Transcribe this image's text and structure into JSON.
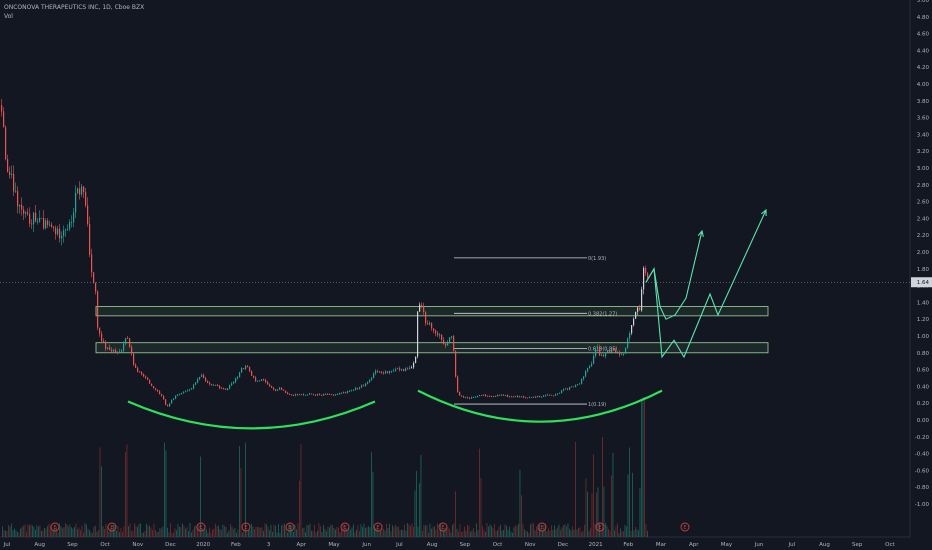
{
  "header": {
    "title": "ONCONOVA THERAPEUTICS INC, 1D, Cboe BZX",
    "volume_label": "Vol"
  },
  "chart_data": {
    "type": "candlestick",
    "price_axis_ticks": [
      "5.00",
      "4.80",
      "4.60",
      "4.40",
      "4.20",
      "4.00",
      "3.80",
      "3.60",
      "3.40",
      "3.20",
      "3.00",
      "2.80",
      "2.60",
      "2.40",
      "2.20",
      "2.00",
      "1.80",
      "1.60",
      "1.40",
      "1.20",
      "1.00",
      "0.80",
      "0.60",
      "0.40",
      "0.20",
      "0.00",
      "-0.20",
      "-0.40",
      "-0.60",
      "-0.80",
      "-1.00"
    ],
    "time_axis_ticks": [
      "Jul",
      "Aug",
      "Sep",
      "Oct",
      "Nov",
      "Dec",
      "2020",
      "Feb",
      "3",
      "Apr",
      "May",
      "Jun",
      "Jul",
      "Aug",
      "Sep",
      "Oct",
      "Nov",
      "Dec",
      "2021",
      "Feb",
      "Mar",
      "Apr",
      "May",
      "Jun",
      "Jul",
      "Aug",
      "Sep",
      "Oct"
    ],
    "current_price": "1.64",
    "price_path": [
      [
        0,
        3.75
      ],
      [
        3,
        3.4
      ],
      [
        6,
        3.0
      ],
      [
        10,
        2.9
      ],
      [
        16,
        2.6
      ],
      [
        22,
        2.45
      ],
      [
        28,
        2.38
      ],
      [
        34,
        2.42
      ],
      [
        40,
        2.35
      ],
      [
        46,
        2.3
      ],
      [
        52,
        2.28
      ],
      [
        58,
        2.2
      ],
      [
        64,
        2.3
      ],
      [
        70,
        2.3
      ],
      [
        76,
        2.7
      ],
      [
        82,
        2.75
      ],
      [
        86,
        2.5
      ],
      [
        89,
        2.0
      ],
      [
        92,
        1.7
      ],
      [
        95,
        1.5
      ],
      [
        97,
        1.1
      ],
      [
        100,
        0.95
      ],
      [
        106,
        0.85
      ],
      [
        112,
        0.82
      ],
      [
        118,
        0.78
      ],
      [
        122,
        0.85
      ],
      [
        126,
        1.05
      ],
      [
        129,
        0.88
      ],
      [
        134,
        0.62
      ],
      [
        140,
        0.55
      ],
      [
        146,
        0.48
      ],
      [
        152,
        0.4
      ],
      [
        158,
        0.33
      ],
      [
        162,
        0.28
      ],
      [
        166,
        0.15
      ],
      [
        170,
        0.22
      ],
      [
        176,
        0.3
      ],
      [
        182,
        0.32
      ],
      [
        188,
        0.35
      ],
      [
        194,
        0.42
      ],
      [
        200,
        0.55
      ],
      [
        206,
        0.45
      ],
      [
        212,
        0.42
      ],
      [
        218,
        0.4
      ],
      [
        224,
        0.35
      ],
      [
        230,
        0.42
      ],
      [
        236,
        0.5
      ],
      [
        240,
        0.6
      ],
      [
        246,
        0.65
      ],
      [
        250,
        0.55
      ],
      [
        256,
        0.45
      ],
      [
        262,
        0.5
      ],
      [
        268,
        0.4
      ],
      [
        274,
        0.35
      ],
      [
        280,
        0.38
      ],
      [
        286,
        0.32
      ],
      [
        292,
        0.3
      ],
      [
        300,
        0.3
      ],
      [
        308,
        0.31
      ],
      [
        316,
        0.3
      ],
      [
        324,
        0.3
      ],
      [
        332,
        0.3
      ],
      [
        340,
        0.32
      ],
      [
        348,
        0.34
      ],
      [
        356,
        0.38
      ],
      [
        364,
        0.42
      ],
      [
        370,
        0.48
      ],
      [
        376,
        0.6
      ],
      [
        382,
        0.55
      ],
      [
        388,
        0.58
      ],
      [
        394,
        0.6
      ],
      [
        400,
        0.6
      ],
      [
        406,
        0.6
      ],
      [
        412,
        0.62
      ],
      [
        415,
        0.75
      ],
      [
        417,
        1.3
      ],
      [
        420,
        1.4
      ],
      [
        424,
        1.2
      ],
      [
        428,
        1.15
      ],
      [
        432,
        1.08
      ],
      [
        436,
        1.05
      ],
      [
        440,
        1.0
      ],
      [
        444,
        0.9
      ],
      [
        448,
        0.95
      ],
      [
        452,
        0.98
      ],
      [
        456,
        0.35
      ],
      [
        460,
        0.28
      ],
      [
        464,
        0.27
      ],
      [
        470,
        0.26
      ],
      [
        476,
        0.28
      ],
      [
        482,
        0.3
      ],
      [
        488,
        0.28
      ],
      [
        494,
        0.28
      ],
      [
        500,
        0.3
      ],
      [
        508,
        0.28
      ],
      [
        516,
        0.28
      ],
      [
        524,
        0.27
      ],
      [
        532,
        0.28
      ],
      [
        540,
        0.28
      ],
      [
        548,
        0.3
      ],
      [
        556,
        0.3
      ],
      [
        562,
        0.35
      ],
      [
        568,
        0.38
      ],
      [
        574,
        0.4
      ],
      [
        580,
        0.45
      ],
      [
        586,
        0.6
      ],
      [
        592,
        0.7
      ],
      [
        596,
        0.88
      ],
      [
        600,
        0.75
      ],
      [
        606,
        0.8
      ],
      [
        612,
        0.85
      ],
      [
        618,
        0.8
      ],
      [
        624,
        0.8
      ],
      [
        628,
        1.0
      ],
      [
        632,
        1.2
      ],
      [
        636,
        1.3
      ],
      [
        640,
        1.3
      ],
      [
        642,
        1.75
      ],
      [
        644,
        1.93
      ],
      [
        646,
        1.64
      ]
    ],
    "projection_paths": [
      [
        [
          646,
          1.64
        ],
        [
          654,
          1.8
        ],
        [
          660,
          1.35
        ],
        [
          666,
          1.2
        ],
        [
          675,
          1.25
        ],
        [
          686,
          1.45
        ],
        [
          702,
          2.25
        ]
      ],
      [
        [
          646,
          1.64
        ],
        [
          654,
          1.8
        ],
        [
          662,
          0.75
        ],
        [
          674,
          0.95
        ],
        [
          684,
          0.75
        ],
        [
          710,
          1.5
        ],
        [
          718,
          1.25
        ],
        [
          766,
          2.5
        ]
      ]
    ],
    "zones": [
      {
        "top": 1.35,
        "bottom": 1.24
      },
      {
        "top": 0.92,
        "bottom": 0.8
      }
    ],
    "fib_levels": [
      {
        "label": "0(1.93)",
        "price": 1.93,
        "x1": 454,
        "x2": 587
      },
      {
        "label": "0.382(1.27)",
        "price": 1.27,
        "x1": 454,
        "x2": 587
      },
      {
        "label": "0.618(0.85)",
        "price": 0.85,
        "x1": 454,
        "x2": 587
      },
      {
        "label": "1(0.19)",
        "price": 0.19,
        "x1": 454,
        "x2": 587
      }
    ],
    "arcs": [
      {
        "x1": 128,
        "x2": 375,
        "y_ends": 0.22,
        "y_mid": -0.1
      },
      {
        "x1": 418,
        "x2": 662,
        "y_ends": 0.35,
        "y_mid": -0.02
      }
    ],
    "earnings_markers": [
      "E",
      "E",
      "E",
      "E",
      "E",
      "E",
      "E",
      "E",
      "E",
      "E",
      "E"
    ],
    "colors": {
      "background": "#131722",
      "up": "#26a69a",
      "down": "#ef5350",
      "wick_up": "#d1d4dc",
      "projection": "#5ee3ac",
      "arc": "#2ee05a",
      "zone": "#9fd59a",
      "axis_text": "#b2b5be",
      "earnings": "#c9423a"
    }
  }
}
